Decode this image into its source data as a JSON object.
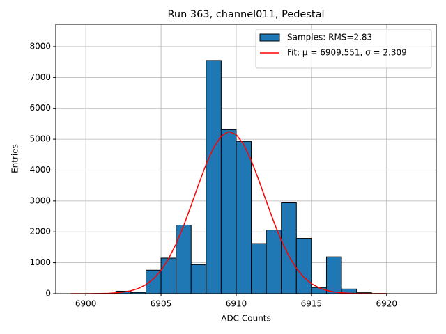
{
  "chart_data": {
    "type": "histogram",
    "title": "Run 363, channel011, Pedestal",
    "xlabel": "ADC Counts",
    "ylabel": "Entries",
    "bins": [
      6899,
      6900,
      6901,
      6902,
      6903,
      6904,
      6905,
      6906,
      6907,
      6908,
      6909,
      6910,
      6911,
      6912,
      6913,
      6914,
      6915,
      6916,
      6917,
      6918,
      6919,
      6920,
      6921,
      6922
    ],
    "series": [
      {
        "type": "histogram",
        "name": "Samples: RMS=2.83",
        "color": "#1f77b4",
        "values": [
          0,
          0,
          0,
          80,
          40,
          760,
          1150,
          2220,
          940,
          7550,
          5310,
          4930,
          1620,
          2060,
          2940,
          1790,
          200,
          1190,
          150,
          30,
          5,
          0,
          0
        ]
      },
      {
        "type": "line",
        "name": "Fit: μ = 6909.551, σ = 2.309",
        "color": "#ff0000",
        "x": [
          6899,
          6899.5,
          6900,
          6900.5,
          6901,
          6901.5,
          6902,
          6902.5,
          6903,
          6903.5,
          6904,
          6904.5,
          6905,
          6905.5,
          6906,
          6906.5,
          6907,
          6907.5,
          6908,
          6908.5,
          6909,
          6909.5,
          6910,
          6910.5,
          6911,
          6911.5,
          6912,
          6912.5,
          6913,
          6913.5,
          6914,
          6914.5,
          6915,
          6915.5,
          6916,
          6916.5,
          6917,
          6917.5,
          6918,
          6918.5,
          6919,
          6919.5,
          6920
        ],
        "values": [
          0,
          0,
          1,
          2,
          6,
          12,
          25,
          50,
          94,
          169,
          292,
          480,
          753,
          1127,
          1609,
          2193,
          2852,
          3540,
          4190,
          4733,
          5102,
          5249,
          5152,
          4825,
          4312,
          3677,
          2992,
          2323,
          1720,
          1217,
          821,
          528,
          324,
          190,
          106,
          57,
          29,
          14,
          7,
          3,
          1,
          1,
          0
        ]
      }
    ],
    "xlim": [
      6898,
      6923.3
    ],
    "ylim": [
      0,
      8720
    ],
    "xticks": [
      6900,
      6905,
      6910,
      6915,
      6920
    ],
    "yticks": [
      0,
      1000,
      2000,
      3000,
      4000,
      5000,
      6000,
      7000,
      8000
    ],
    "grid": true,
    "legend": "upper right"
  }
}
